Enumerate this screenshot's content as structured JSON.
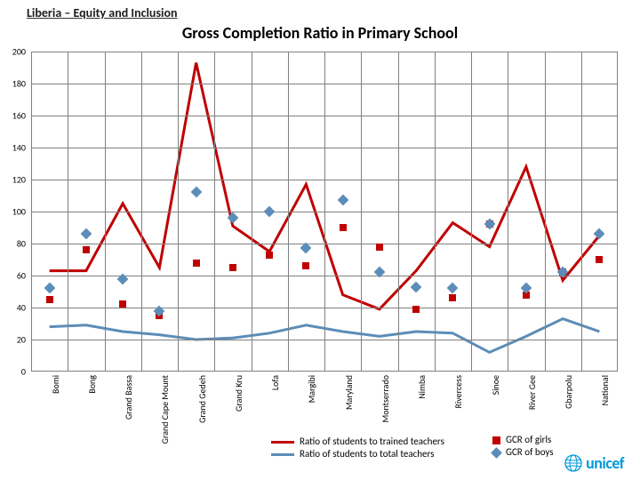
{
  "header": {
    "subtitle": "Liberia – Equity and Inclusion",
    "subtitle_fontsize": 14,
    "title": "Gross Completion Ratio in Primary School",
    "title_fontsize": 18
  },
  "chart": {
    "type": "line+scatter",
    "background_color": "#ffffff",
    "grid_color": "#808080",
    "ylim": [
      0,
      200
    ],
    "ytick_step": 20,
    "categories": [
      "Bomi",
      "Bong",
      "Grand Bassa",
      "Grand Cape Mount",
      "Grand Gedeh",
      "Grand Kru",
      "Lofa",
      "Margibi",
      "Maryland",
      "Montserrado",
      "Nimba",
      "Rivercess",
      "Sinoe",
      "River Gee",
      "Gbarpolu",
      "National"
    ],
    "series": {
      "ratio_trained": {
        "label": "Ratio of students to trained teachers",
        "color": "#c00000",
        "width": 3,
        "values": [
          63,
          63,
          105,
          65,
          193,
          91,
          75,
          117,
          48,
          39,
          63,
          93,
          78,
          128,
          57,
          85
        ]
      },
      "ratio_total": {
        "label": "Ratio of students to total teachers",
        "color": "#5b8db8",
        "width": 3,
        "values": [
          28,
          29,
          25,
          23,
          20,
          21,
          24,
          29,
          25,
          22,
          25,
          24,
          12,
          22,
          33,
          25
        ]
      },
      "gcr_girls": {
        "label": "GCR of girls",
        "color": "#c00000",
        "marker": "square",
        "values": [
          45,
          76,
          42,
          35,
          68,
          65,
          73,
          66,
          90,
          78,
          39,
          46,
          92,
          48,
          62,
          70
        ]
      },
      "gcr_boys": {
        "label": "GCR of boys",
        "color": "#5b8db8",
        "marker": "diamond",
        "values": [
          52,
          86,
          58,
          38,
          112,
          96,
          100,
          77,
          107,
          62,
          53,
          52,
          92,
          52,
          62,
          86
        ]
      }
    },
    "label_fontsize": 10
  },
  "logo": {
    "text": "unicef",
    "color": "#0099d8"
  }
}
